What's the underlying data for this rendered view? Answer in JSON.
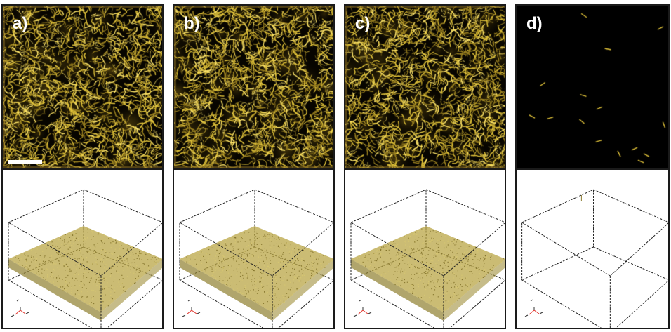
{
  "panels": [
    {
      "label": "a)",
      "state": "dense",
      "scale_bar": true
    },
    {
      "label": "b)",
      "state": "dense",
      "scale_bar": false
    },
    {
      "label": "c)",
      "state": "dense",
      "scale_bar": false
    },
    {
      "label": "d)",
      "state": "sparse",
      "scale_bar": false
    }
  ],
  "colors": {
    "fiber": "#e2c43a",
    "background": "#070500",
    "volume_fill": "#b9a645",
    "axis_red": "#e0322a"
  }
}
